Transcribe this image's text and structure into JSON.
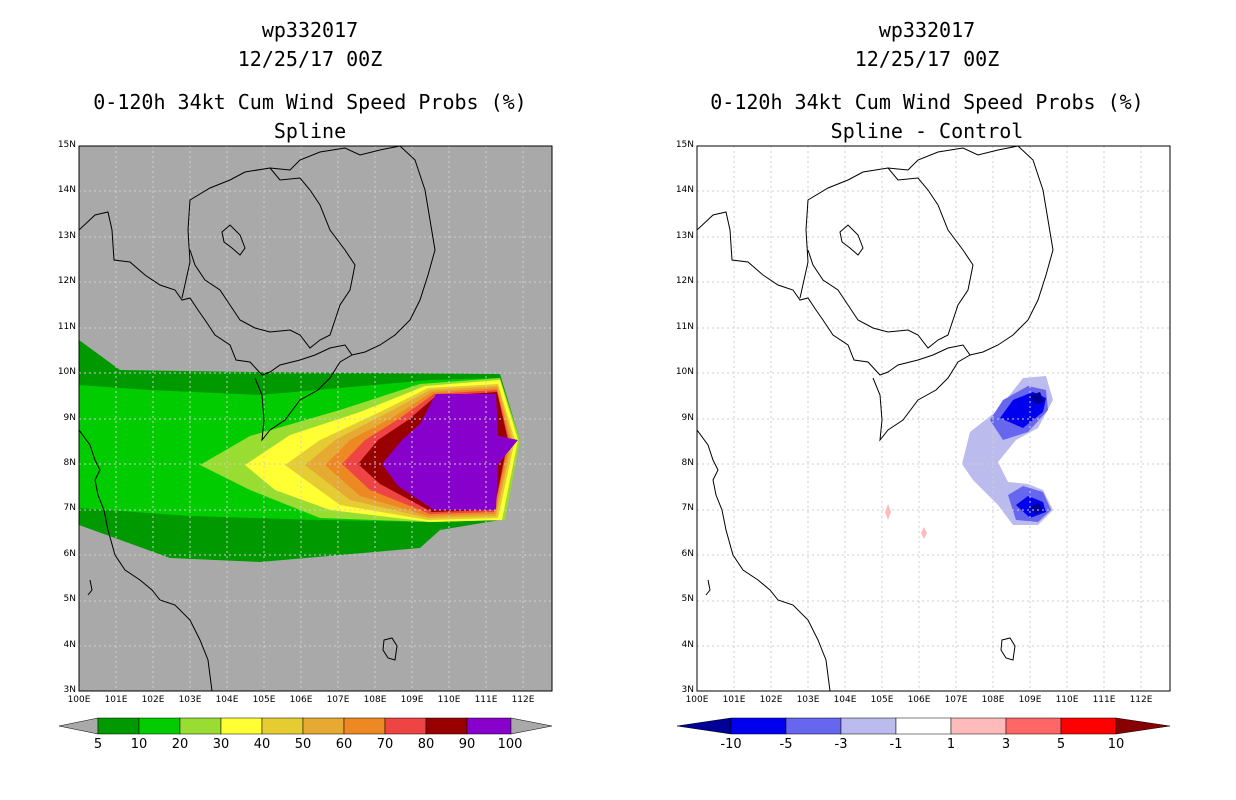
{
  "left": {
    "title1": "wp332017",
    "title2": "12/25/17 00Z",
    "title3": "0-120h 34kt Cum Wind Speed Probs (%)",
    "subtitle": "Spline",
    "lat_labels": [
      "15N",
      "14N",
      "13N",
      "12N",
      "11N",
      "10N",
      "9N",
      "8N",
      "7N",
      "6N",
      "5N",
      "4N",
      "3N"
    ],
    "lon_labels": [
      "100E",
      "101E",
      "102E",
      "103E",
      "104E",
      "105E",
      "106E",
      "107E",
      "108E",
      "109E",
      "110E",
      "111E",
      "112E"
    ],
    "colorbar": {
      "labels": [
        "5",
        "10",
        "20",
        "30",
        "40",
        "50",
        "60",
        "70",
        "80",
        "90",
        "100"
      ],
      "colors": [
        "#009900",
        "#00cc00",
        "#99dd33",
        "#ffff33",
        "#e6cc33",
        "#e6aa33",
        "#ee8822",
        "#ee4444",
        "#990000",
        "#8800cc"
      ]
    }
  },
  "right": {
    "title1": "wp332017",
    "title2": "12/25/17 00Z",
    "title3": "0-120h 34kt Cum Wind Speed Probs (%)",
    "subtitle": "Spline - Control",
    "lat_labels": [
      "15N",
      "14N",
      "13N",
      "12N",
      "11N",
      "10N",
      "9N",
      "8N",
      "7N",
      "6N",
      "5N",
      "4N",
      "3N"
    ],
    "lon_labels": [
      "100E",
      "101E",
      "102E",
      "103E",
      "104E",
      "105E",
      "106E",
      "107E",
      "108E",
      "109E",
      "110E",
      "111E",
      "112E"
    ],
    "colorbar": {
      "labels": [
        "-10",
        "-5",
        "-3",
        "-1",
        "1",
        "3",
        "5",
        "10"
      ],
      "colors": [
        "#000099",
        "#0000ee",
        "#6666ee",
        "#bbbbee",
        "#ffffff",
        "#ffbbbb",
        "#ff6666",
        "#ff0000",
        "#880000"
      ]
    }
  }
}
